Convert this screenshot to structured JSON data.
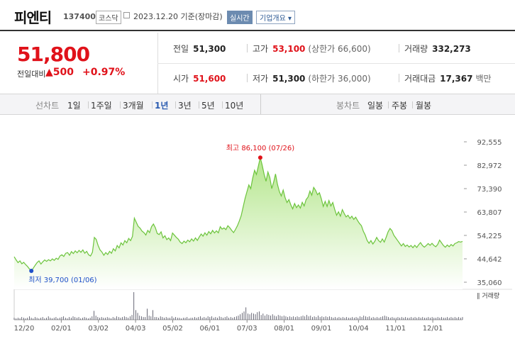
{
  "header": {
    "name": "피엔티",
    "code": "137400",
    "market": "코스닥",
    "date": "2023.12.20 기준(장마감)",
    "realtime": "실시간",
    "company_info": "기업개요 ▾"
  },
  "quote": {
    "price": "51,800",
    "change_label": "전일대비",
    "change": "▲500",
    "change_pct": "+0.97%"
  },
  "stats": [
    {
      "label": "전일",
      "value": "51,300",
      "red": false,
      "sub": ""
    },
    {
      "label": "고가",
      "value": "53,100",
      "red": true,
      "sub": "(상한가 66,600)"
    },
    {
      "label": "거래량",
      "value": "332,273",
      "red": false,
      "sub": ""
    },
    {
      "label": "시가",
      "value": "51,600",
      "red": true,
      "sub": ""
    },
    {
      "label": "저가",
      "value": "51,300",
      "red": false,
      "sub": "(하한가 36,000)"
    },
    {
      "label": "거래대금",
      "value": "17,367",
      "red": false,
      "sub": "백만"
    }
  ],
  "line_bar": {
    "label": "선차트",
    "items": [
      "1일",
      "1주일",
      "3개월",
      "1년",
      "3년",
      "5년",
      "10년"
    ],
    "selected": "1년"
  },
  "candle_bar": {
    "label": "봉차트",
    "items": [
      "일봉",
      "주봉",
      "월봉"
    ]
  },
  "volume_label": "거래량",
  "colors": {
    "up": "#e0121a",
    "line": "#6cc43c",
    "fill_top": "#b4e68c",
    "low_marker": "#1e50c8",
    "accent": "#2a5bb0"
  },
  "chart_data": {
    "type": "area",
    "x_ticks": [
      "12/20",
      "02/01",
      "03/02",
      "04/03",
      "05/02",
      "06/01",
      "07/03",
      "08/01",
      "09/01",
      "10/04",
      "11/01",
      "12/01"
    ],
    "y_ticks": [
      "92,555",
      "82,972",
      "73,390",
      "63,807",
      "54,225",
      "44,642",
      "35,060"
    ],
    "ylim": [
      35060,
      92555
    ],
    "series": [
      {
        "values": [
          45500,
          44200,
          43100,
          43800,
          42600,
          43200,
          42300,
          41500,
          40500,
          39700,
          40800,
          42000,
          43100,
          43800,
          42500,
          43400,
          44200,
          43600,
          44300,
          43800,
          44600,
          44000,
          44900,
          44400,
          45800,
          46300,
          45600,
          46900,
          47200,
          46100,
          47600,
          46800,
          47900,
          47100,
          48100,
          47300,
          48300,
          46900,
          47700,
          46300,
          45800,
          47300,
          53400,
          52600,
          50100,
          48300,
          47400,
          46100,
          47200,
          46400,
          47700,
          46900,
          48800,
          47900,
          50100,
          49100,
          51200,
          50300,
          52100,
          51200,
          53000,
          52100,
          53800,
          61300,
          59600,
          57900,
          57200,
          56000,
          55400,
          54400,
          56300,
          55400,
          57800,
          58900,
          57400,
          55000,
          54600,
          55700,
          53200,
          54100,
          52500,
          53200,
          52100,
          55200,
          54300,
          53400,
          52700,
          51500,
          50900,
          51900,
          51200,
          52300,
          51600,
          52800,
          51900,
          53200,
          52200,
          53600,
          54800,
          53900,
          55300,
          54300,
          55800,
          54900,
          56300,
          55200,
          56100,
          55300,
          57800,
          56800,
          57300,
          56600,
          58200,
          57400,
          56300,
          55400,
          56700,
          58200,
          60100,
          62300,
          65800,
          69300,
          72100,
          74900,
          73400,
          77700,
          80900,
          79200,
          82600,
          86100,
          83000,
          79300,
          76400,
          80200,
          77900,
          73400,
          76100,
          79400,
          75200,
          72200,
          70400,
          72800,
          69700,
          67700,
          68900,
          66700,
          65100,
          67300,
          65600,
          66700,
          65400,
          67800,
          66300,
          68900,
          69900,
          72400,
          70700,
          73900,
          72700,
          70900,
          71700,
          69200,
          66100,
          68200,
          66100,
          68500,
          66300,
          67700,
          64900,
          62500,
          63900,
          62100,
          64800,
          63200,
          61800,
          62500,
          61200,
          62100,
          60800,
          61700,
          60300,
          59100,
          58200,
          55900,
          54400,
          52200,
          51000,
          52100,
          50700,
          51800,
          53400,
          52100,
          51400,
          52800,
          51500,
          53500,
          55700,
          57100,
          56200,
          54300,
          53200,
          52100,
          51000,
          49900,
          50900,
          49700,
          50300,
          49500,
          50100,
          49200,
          50200,
          49300,
          50400,
          51300,
          50100,
          49400,
          50100,
          50900,
          50200,
          51000,
          50100,
          49600,
          50500,
          52300,
          51200,
          50100,
          49400,
          50300,
          49600,
          50500,
          49900,
          50900,
          51200,
          51700,
          51500,
          51800
        ]
      }
    ],
    "annotations": [
      {
        "text": "최고 86,100 (07/26)",
        "kind": "high"
      },
      {
        "text": "최저 39,700 (01/06)",
        "kind": "low"
      }
    ],
    "volume": [
      3,
      2,
      3,
      2,
      4,
      3,
      2,
      3,
      5,
      3,
      2,
      4,
      3,
      2,
      3,
      4,
      2,
      3,
      5,
      3,
      2,
      3,
      4,
      2,
      3,
      4,
      5,
      3,
      2,
      4,
      3,
      5,
      4,
      3,
      4,
      2,
      3,
      4,
      3,
      2,
      3,
      5,
      13,
      6,
      4,
      3,
      4,
      3,
      3,
      4,
      3,
      2,
      4,
      3,
      5,
      4,
      3,
      4,
      5,
      4,
      3,
      5,
      7,
      40,
      14,
      10,
      6,
      5,
      4,
      4,
      16,
      6,
      5,
      14,
      4,
      4,
      3,
      5,
      4,
      3,
      4,
      3,
      3,
      5,
      3,
      4,
      3,
      3,
      2,
      3,
      3,
      4,
      2,
      3,
      3,
      4,
      3,
      4,
      5,
      3,
      4,
      3,
      5,
      4,
      5,
      3,
      4,
      3,
      5,
      4,
      3,
      4,
      5,
      3,
      4,
      3,
      4,
      5,
      6,
      8,
      10,
      12,
      18,
      9,
      8,
      10,
      9,
      8,
      11,
      12,
      7,
      9,
      6,
      8,
      7,
      6,
      8,
      6,
      5,
      7,
      6,
      5,
      6,
      5,
      4,
      5,
      4,
      5,
      4,
      5,
      4,
      5,
      6,
      5,
      7,
      5,
      6,
      4,
      5,
      4,
      6,
      4,
      5,
      4,
      5,
      4,
      5,
      4,
      3,
      4,
      3,
      4,
      3,
      4,
      3,
      4,
      3,
      3,
      4,
      3,
      4,
      3,
      5,
      4,
      6,
      5,
      4,
      5,
      3,
      4,
      3,
      4,
      3,
      4,
      5,
      6,
      5,
      4,
      3,
      4,
      3,
      3,
      4,
      3,
      4,
      3,
      4,
      3,
      3,
      4,
      3,
      4,
      3,
      4,
      3,
      4,
      3,
      3,
      4,
      3,
      4,
      3,
      3,
      4,
      3,
      4,
      3,
      3,
      4,
      3,
      4,
      3,
      4,
      3,
      4,
      3,
      4
    ]
  }
}
